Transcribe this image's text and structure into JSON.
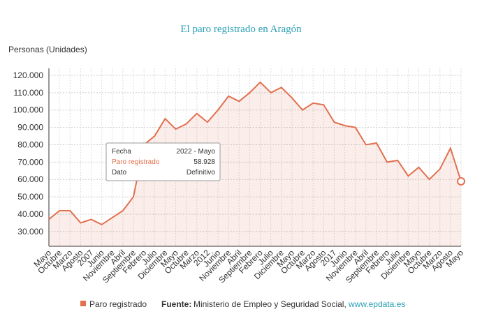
{
  "chart_data": {
    "type": "line",
    "title": "El paro registrado en Aragón",
    "y_label": "Personas (Unidades)",
    "categories": [
      "Mayo",
      "Octubre",
      "Marzo",
      "Agosto",
      "2007",
      "Junio",
      "Noviembre",
      "Abril",
      "Septiembre",
      "Febrero",
      "Julio",
      "Diciembre",
      "Mayo",
      "Octubre",
      "Marzo",
      "2012",
      "Junio",
      "Noviembre",
      "Abril",
      "Septiembre",
      "Febrero",
      "Julio",
      "Diciembre",
      "Mayo",
      "Octubre",
      "Marzo",
      "Agosto",
      "2017",
      "Junio",
      "Noviembre",
      "Abril",
      "Septiembre",
      "Febrero",
      "Julio",
      "Diciembre",
      "Mayo",
      "Octubre",
      "Marzo",
      "Agosto",
      "Mayo"
    ],
    "series": [
      {
        "name": "Paro registrado",
        "color": "#e2704f",
        "values": [
          37000,
          42000,
          42000,
          35000,
          37000,
          34000,
          38000,
          42000,
          50000,
          80000,
          85000,
          95000,
          89000,
          92000,
          98000,
          93000,
          100000,
          108000,
          105000,
          110000,
          116000,
          110000,
          113000,
          107000,
          100000,
          104000,
          103000,
          93000,
          91000,
          90000,
          80000,
          81000,
          70000,
          71000,
          62000,
          67000,
          60000,
          66000,
          78000,
          58928
        ]
      }
    ],
    "ylim": [
      21500,
      124000
    ],
    "yticks": [
      {
        "value": 30000,
        "label": "30.000"
      },
      {
        "value": 40000,
        "label": "40.000"
      },
      {
        "value": 50000,
        "label": "50.000"
      },
      {
        "value": 60000,
        "label": "60.000"
      },
      {
        "value": 70000,
        "label": "70.000"
      },
      {
        "value": 80000,
        "label": "80.000"
      },
      {
        "value": 90000,
        "label": "90.000"
      },
      {
        "value": 100000,
        "label": "100.000"
      },
      {
        "value": 110000,
        "label": "110.000"
      },
      {
        "value": 120000,
        "label": "120.000"
      }
    ],
    "grid": true,
    "tooltip": {
      "rows": [
        [
          "Fecha",
          "2022 - Mayo"
        ],
        [
          "Paro registrado",
          "58.928"
        ],
        [
          "Dato",
          "Definitivo"
        ]
      ]
    },
    "source_label": "Fuente:",
    "source": "Ministerio de Empleo y Seguridad Social,",
    "link": "www.epdata.es"
  }
}
